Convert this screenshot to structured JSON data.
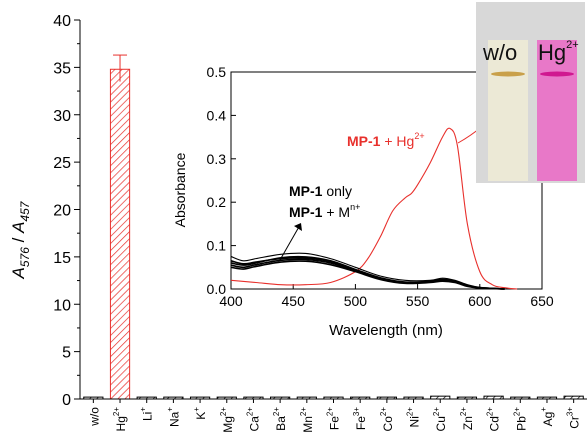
{
  "chart_data": [
    {
      "type": "bar",
      "ylabel_main": "A",
      "ylabel_sub1": "576",
      "ylabel_sep": " / ",
      "ylabel_sub2": "457",
      "ylim": [
        0,
        40
      ],
      "yticks": [
        "0",
        "5",
        "10",
        "15",
        "20",
        "25",
        "30",
        "35",
        "40"
      ],
      "categories": [
        {
          "base": "w/o",
          "sup": ""
        },
        {
          "base": "Hg",
          "sup": "2+"
        },
        {
          "base": "Li",
          "sup": "+"
        },
        {
          "base": "Na",
          "sup": "+"
        },
        {
          "base": "K",
          "sup": "+"
        },
        {
          "base": "Mg",
          "sup": "2+"
        },
        {
          "base": "Ca",
          "sup": "2+"
        },
        {
          "base": "Ba",
          "sup": "2+"
        },
        {
          "base": "Mn",
          "sup": "2+"
        },
        {
          "base": "Fe",
          "sup": "2+"
        },
        {
          "base": "Fe",
          "sup": "3+"
        },
        {
          "base": "Co",
          "sup": "2+"
        },
        {
          "base": "Ni",
          "sup": "2+"
        },
        {
          "base": "Cu",
          "sup": "2+"
        },
        {
          "base": "Zn",
          "sup": "2+"
        },
        {
          "base": "Cd",
          "sup": "2+"
        },
        {
          "base": "Pb",
          "sup": "2+"
        },
        {
          "base": "Ag",
          "sup": "+"
        },
        {
          "base": "Cr",
          "sup": "3+"
        }
      ],
      "values": [
        0.2,
        34.8,
        0.2,
        0.2,
        0.2,
        0.2,
        0.2,
        0.2,
        0.2,
        0.2,
        0.2,
        0.2,
        0.2,
        0.3,
        0.2,
        0.3,
        0.2,
        0.2,
        0.3
      ],
      "highlight_index": 1,
      "error_bar": {
        "index": 1,
        "upper": 36.3,
        "lower": 33.5
      },
      "colors": {
        "highlight": "#e8302c",
        "other": "#000000"
      }
    },
    {
      "type": "line",
      "xlabel": "Wavelength (nm)",
      "ylabel": "Absorbance",
      "xlim": [
        400,
        650
      ],
      "ylim": [
        0,
        0.5
      ],
      "xticks": [
        "400",
        "450",
        "500",
        "550",
        "600",
        "650"
      ],
      "yticks": [
        "0.0",
        "0.1",
        "0.2",
        "0.3",
        "0.4",
        "0.5"
      ],
      "series": [
        {
          "role": "hg",
          "color": "#e8302c",
          "x": [
            400,
            420,
            440,
            460,
            480,
            500,
            510,
            520,
            530,
            540,
            545,
            550,
            560,
            570,
            576,
            582,
            590,
            600,
            610,
            620,
            630
          ],
          "y": [
            0.02,
            0.015,
            0.01,
            0.01,
            0.015,
            0.04,
            0.07,
            0.12,
            0.18,
            0.21,
            0.22,
            0.24,
            0.29,
            0.35,
            0.37,
            0.33,
            0.15,
            0.04,
            0.01,
            0.003,
            0.0
          ]
        },
        {
          "role": "mp1",
          "color": "#000000",
          "x": [
            400,
            410,
            420,
            440,
            460,
            480,
            500,
            520,
            540,
            560,
            570,
            580,
            590,
            600,
            620
          ],
          "y": [
            0.075,
            0.065,
            0.07,
            0.08,
            0.082,
            0.07,
            0.05,
            0.03,
            0.02,
            0.02,
            0.025,
            0.02,
            0.01,
            0.004,
            0.0
          ]
        },
        {
          "role": "metal",
          "color": "#000000",
          "x": [
            400,
            410,
            420,
            440,
            460,
            480,
            500,
            520,
            540,
            560,
            570,
            580,
            590,
            600,
            620
          ],
          "y": [
            0.06,
            0.055,
            0.06,
            0.072,
            0.074,
            0.065,
            0.045,
            0.026,
            0.016,
            0.018,
            0.022,
            0.018,
            0.008,
            0.003,
            0.0
          ]
        },
        {
          "role": "metal",
          "color": "#000000",
          "x": [
            400,
            410,
            420,
            440,
            460,
            480,
            500,
            520,
            540,
            560,
            570,
            580,
            590,
            600,
            620
          ],
          "y": [
            0.055,
            0.05,
            0.056,
            0.066,
            0.068,
            0.06,
            0.042,
            0.024,
            0.015,
            0.016,
            0.02,
            0.016,
            0.007,
            0.003,
            0.0
          ]
        },
        {
          "role": "metal",
          "color": "#000000",
          "x": [
            400,
            410,
            420,
            440,
            460,
            480,
            500,
            520,
            540,
            560,
            570,
            580,
            590,
            600,
            620
          ],
          "y": [
            0.05,
            0.046,
            0.052,
            0.062,
            0.064,
            0.056,
            0.04,
            0.022,
            0.013,
            0.015,
            0.018,
            0.015,
            0.006,
            0.002,
            0.0
          ]
        },
        {
          "role": "metal",
          "color": "#000000",
          "x": [
            400,
            410,
            420,
            440,
            460,
            480,
            500,
            520,
            540,
            560,
            570,
            580,
            590,
            600,
            620
          ],
          "y": [
            0.065,
            0.058,
            0.062,
            0.07,
            0.071,
            0.063,
            0.044,
            0.025,
            0.015,
            0.017,
            0.021,
            0.017,
            0.007,
            0.003,
            0.0
          ]
        }
      ],
      "annotations": {
        "hg": {
          "bold": "MP-1",
          "text": " + Hg",
          "sup": "2+"
        },
        "only": {
          "bold": "MP-1",
          "text": " only"
        },
        "metal": {
          "bold": "MP-1",
          "text": " + M",
          "sup": "n+"
        }
      }
    }
  ],
  "photo": {
    "label_left": "w/o",
    "label_right": "Hg",
    "label_right_sup": "2+",
    "colors": {
      "clear_vial": "#ece9d6",
      "pink_vial": "#e878c8",
      "background": "#d8d8d8"
    }
  }
}
